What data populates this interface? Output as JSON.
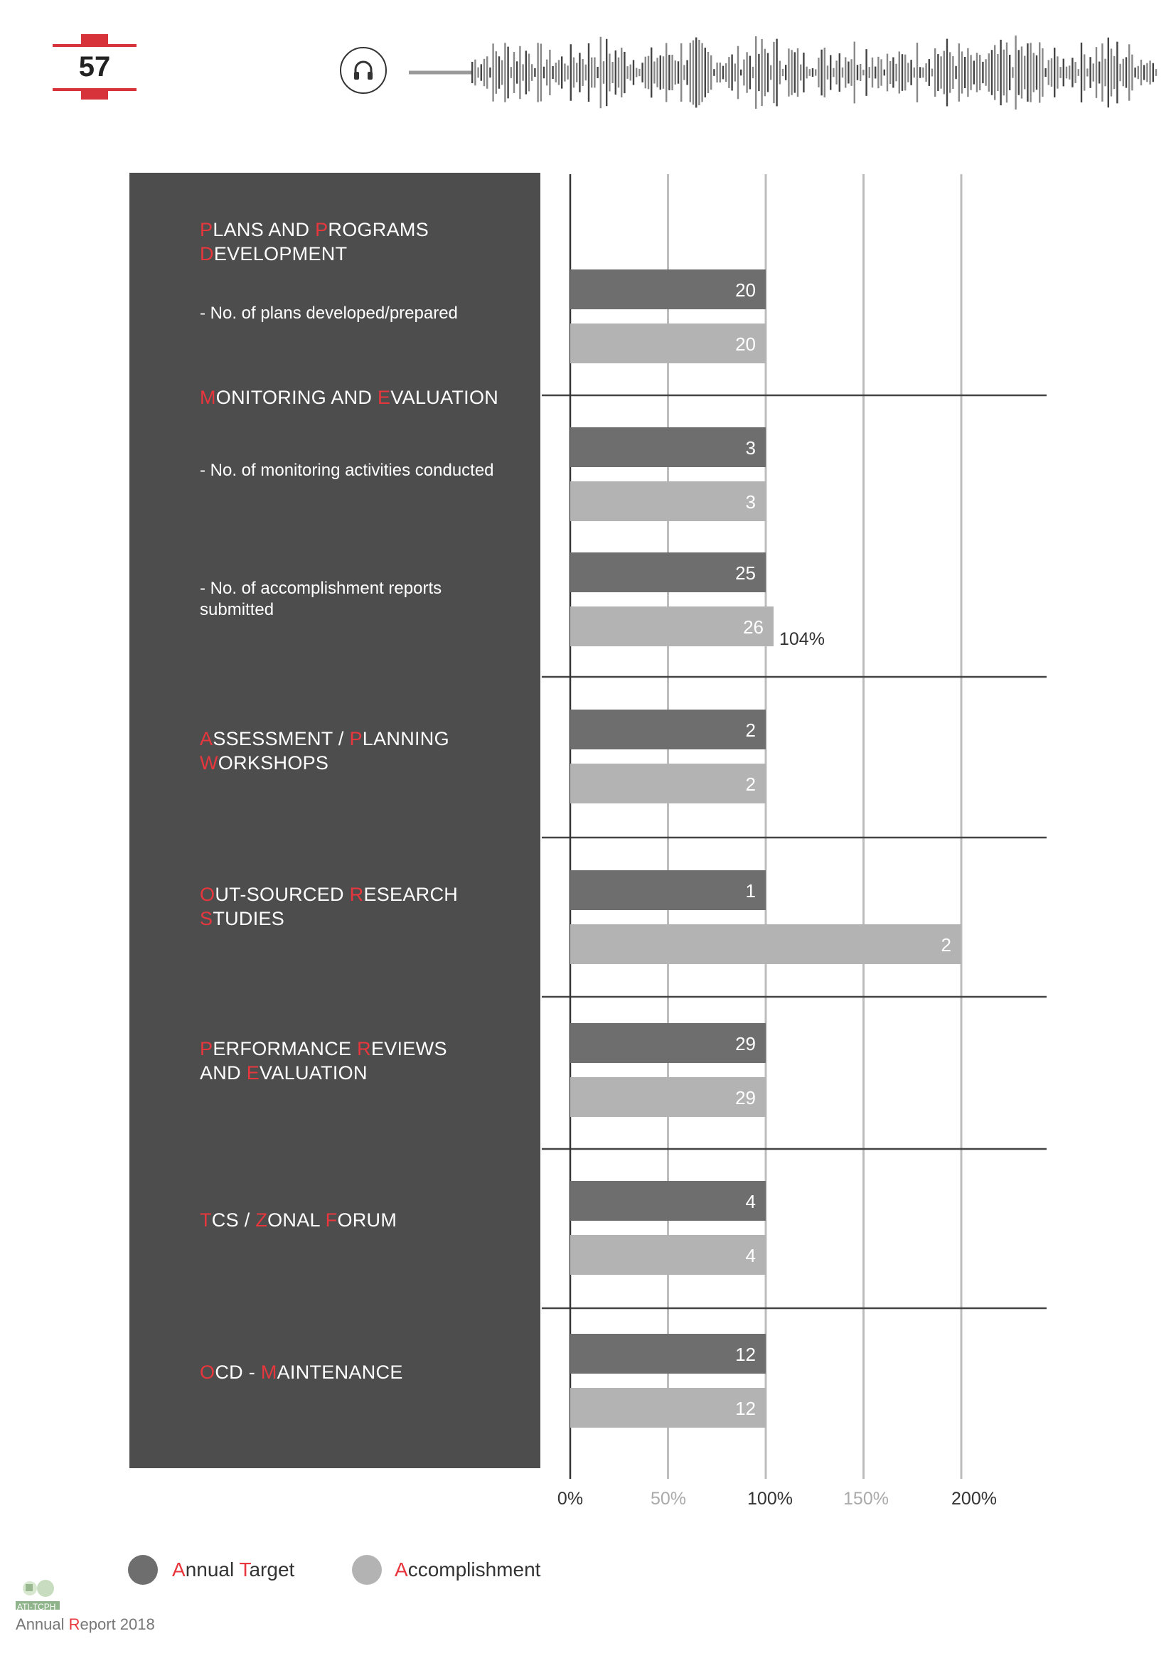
{
  "page": {
    "number": "57",
    "footer_org": "ATI-TCPH",
    "footer_label_first": "A",
    "footer_label_mid": "nnual ",
    "footer_label_second": "R",
    "footer_label_end": "eport 2018"
  },
  "colors": {
    "accent": "#e8363d",
    "panel": "#4d4d4d",
    "annual_target": "#6e6e6e",
    "accomplishment": "#b3b3b3"
  },
  "icons": {
    "audio": "headphone-icon",
    "waveform": "audio-waveform-graphic"
  },
  "categories": [
    {
      "title": [
        [
          "P",
          true
        ],
        [
          "LANS AND ",
          false
        ],
        [
          "P",
          true
        ],
        [
          "ROGRAMS",
          false
        ],
        [
          "\n",
          false
        ],
        [
          "D",
          true
        ],
        [
          "EVELOPMENT",
          false
        ]
      ]
    },
    {
      "title": [
        [
          "M",
          true
        ],
        [
          "ONITORING AND ",
          false
        ],
        [
          "E",
          true
        ],
        [
          "VALUATION",
          false
        ]
      ]
    },
    {
      "title": [
        [
          "A",
          true
        ],
        [
          "SSESSMENT / ",
          false
        ],
        [
          "P",
          true
        ],
        [
          "LANNING",
          false
        ],
        [
          "\n",
          false
        ],
        [
          "W",
          true
        ],
        [
          "ORKSHOPS",
          false
        ]
      ]
    },
    {
      "title": [
        [
          "O",
          true
        ],
        [
          "UT-SOURCED ",
          false
        ],
        [
          "R",
          true
        ],
        [
          "ESEARCH",
          false
        ],
        [
          "\n",
          false
        ],
        [
          "S",
          true
        ],
        [
          "TUDIES",
          false
        ]
      ]
    },
    {
      "title": [
        [
          "P",
          true
        ],
        [
          "ERFORMANCE ",
          false
        ],
        [
          "R",
          true
        ],
        [
          "EVIEWS",
          false
        ],
        [
          "\n",
          false
        ],
        [
          "AND ",
          false
        ],
        [
          "E",
          true
        ],
        [
          "VALUATION",
          false
        ]
      ]
    },
    {
      "title": [
        [
          "T",
          true
        ],
        [
          "CS / ",
          false
        ],
        [
          "Z",
          true
        ],
        [
          "ONAL ",
          false
        ],
        [
          "F",
          true
        ],
        [
          "ORUM",
          false
        ]
      ]
    },
    {
      "title": [
        [
          "O",
          true
        ],
        [
          "CD - ",
          false
        ],
        [
          "M",
          true
        ],
        [
          "AINTENANCE",
          false
        ]
      ]
    }
  ],
  "sub_labels": [
    "- No. of plans developed/prepared",
    "- No. of monitoring activities conducted",
    "- No. of accomplishment reports submitted"
  ],
  "legend": {
    "target_first": "A",
    "target_mid": "nnual ",
    "target_second": "T",
    "target_end": "arget",
    "accomp_first": "A",
    "accomp_end": "ccomplishment"
  },
  "chart_data": {
    "type": "bar",
    "orientation": "horizontal",
    "x_axis_ticks": [
      "0%",
      "50%",
      "100%",
      "150%",
      "200%"
    ],
    "xlim": [
      0,
      200
    ],
    "legend_placement": "bottom",
    "series": [
      {
        "name": "Annual Target",
        "color": "#6e6e6e"
      },
      {
        "name": "Accomplishment",
        "color": "#b3b3b3"
      }
    ],
    "rows": [
      {
        "target": 20,
        "accomplishment": 20,
        "target_pct": 100,
        "accomplishment_pct": 100,
        "note": ""
      },
      {
        "target": 3,
        "accomplishment": 3,
        "target_pct": 100,
        "accomplishment_pct": 100,
        "note": ""
      },
      {
        "target": 25,
        "accomplishment": 26,
        "target_pct": 100,
        "accomplishment_pct": 104,
        "note": "104%"
      },
      {
        "target": 2,
        "accomplishment": 2,
        "target_pct": 100,
        "accomplishment_pct": 100,
        "note": ""
      },
      {
        "target": 1,
        "accomplishment": 2,
        "target_pct": 100,
        "accomplishment_pct": 200,
        "note": ""
      },
      {
        "target": 29,
        "accomplishment": 29,
        "target_pct": 100,
        "accomplishment_pct": 100,
        "note": ""
      },
      {
        "target": 4,
        "accomplishment": 4,
        "target_pct": 100,
        "accomplishment_pct": 100,
        "note": ""
      },
      {
        "target": 12,
        "accomplishment": 12,
        "target_pct": 100,
        "accomplishment_pct": 100,
        "note": ""
      }
    ]
  }
}
